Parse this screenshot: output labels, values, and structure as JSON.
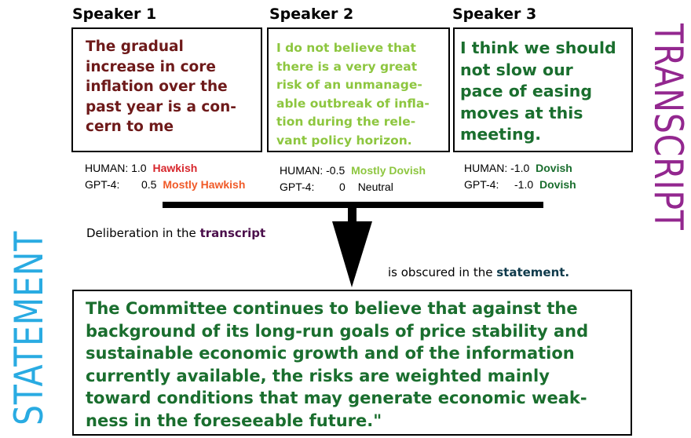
{
  "speakers": [
    {
      "heading": "Speaker 1",
      "quote_lines": [
        "The gradual",
        "increase in core",
        "inflation over the",
        "past year is a con-",
        "cern to me"
      ],
      "human": {
        "label": "HUMAN:",
        "score": "1.0",
        "class": "Hawkish",
        "color": "#d7262c"
      },
      "gpt4": {
        "label": "GPT-4:",
        "score": "0.5",
        "class": "Mostly Hawkish",
        "color": "#f05a28"
      }
    },
    {
      "heading": "Speaker 2",
      "quote_lines": [
        "I do not believe that",
        "there is a very great",
        "risk of an unmanage-",
        "able outbreak of infla-",
        "tion during the rele-",
        "vant policy horizon."
      ],
      "human": {
        "label": "HUMAN:",
        "score": "-0.5",
        "class": "Mostly Dovish",
        "color": "#8dc63f"
      },
      "gpt4": {
        "label": "GPT-4:",
        "score": "0",
        "class": "Neutral",
        "color": "#000000"
      }
    },
    {
      "heading": "Speaker 3",
      "quote_lines": [
        "I think we should",
        "not slow our",
        "pace of easing",
        "moves at this",
        "meeting."
      ],
      "human": {
        "label": "HUMAN:",
        "score": "-1.0",
        "class": "Dovish",
        "color": "#1a6e2e"
      },
      "gpt4": {
        "label": "GPT-4:",
        "score": "-1.0",
        "class": "Dovish",
        "color": "#1a6e2e"
      }
    }
  ],
  "side_titles": {
    "transcript": "TRANSCRIPT",
    "statement": "STATEMENT",
    "transcript_color": "#93278f",
    "statement_color": "#29abe2"
  },
  "captions": {
    "deliberation_prefix": "Deliberation in the",
    "deliberation_keyword": "transcript",
    "deliberation_keyword_color": "#4b0f4b",
    "obscured_prefix": "is obscured in the",
    "obscured_keyword": "statement.",
    "obscured_keyword_color": "#0f3a4b"
  },
  "statement": {
    "lines": [
      "The Committee continues to believe that against the",
      "background of its long-run goals of price stability and",
      "sustainable economic growth and of the information",
      "currently available, the risks are weighted mainly",
      "toward conditions that may generate economic weak-",
      "ness in the foreseeable future.\""
    ]
  }
}
